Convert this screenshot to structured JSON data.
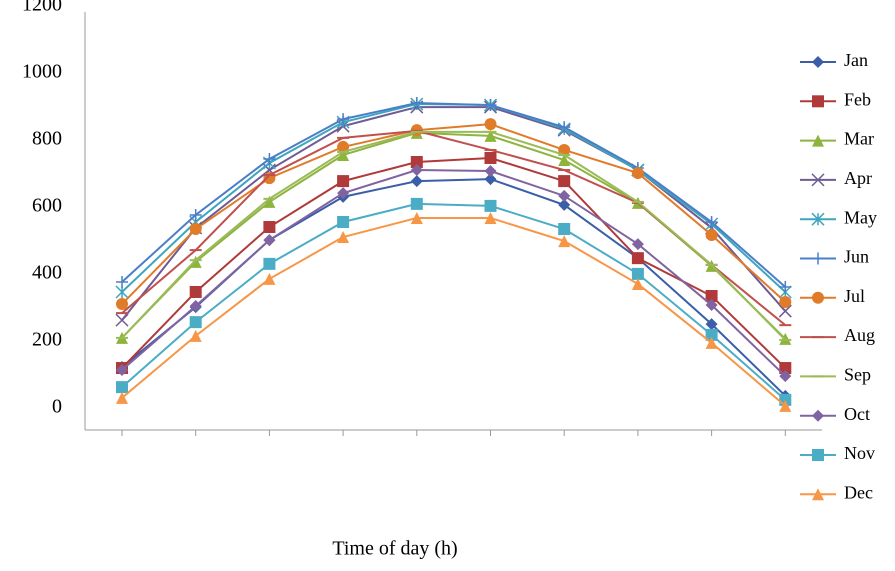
{
  "chart_data": {
    "type": "line",
    "x_label": "Time of day (h)",
    "categories": [
      null,
      null,
      null,
      null,
      null,
      null,
      null,
      null,
      null,
      null
    ],
    "ylim": [
      0,
      1200
    ],
    "yticks": [
      0,
      200,
      400,
      600,
      800,
      1000,
      1200
    ],
    "series": [
      {
        "name": "Jan",
        "color": "#3a5ea8",
        "marker": "diamond",
        "values": [
          182,
          361,
          561,
          690,
          737,
          743,
          666,
          507,
          310,
          96
        ]
      },
      {
        "name": "Feb",
        "color": "#b03a3a",
        "marker": "square",
        "values": [
          179,
          406,
          600,
          737,
          794,
          806,
          737,
          507,
          394,
          179
        ]
      },
      {
        "name": "Mar",
        "color": "#8db43c",
        "marker": "triangle",
        "values": [
          269,
          496,
          675,
          815,
          881,
          872,
          800,
          672,
          484,
          266
        ]
      },
      {
        "name": "Apr",
        "color": "#6f5a94",
        "marker": "x",
        "values": [
          322,
          597,
          770,
          901,
          958,
          958,
          889,
          770,
          597,
          349
        ]
      },
      {
        "name": "May",
        "color": "#3da6be",
        "marker": "star",
        "values": [
          406,
          615,
          791,
          913,
          967,
          964,
          893,
          770,
          609,
          406
        ]
      },
      {
        "name": "Jun",
        "color": "#4a7fc8",
        "marker": "plus",
        "values": [
          436,
          636,
          803,
          922,
          970,
          964,
          898,
          776,
          615,
          421
        ]
      },
      {
        "name": "Jul",
        "color": "#e07b2a",
        "marker": "circle",
        "values": [
          370,
          594,
          746,
          839,
          889,
          907,
          830,
          761,
          576,
          376
        ]
      },
      {
        "name": "Aug",
        "color": "#c0504d",
        "marker": "dash",
        "values": [
          343,
          531,
          755,
          866,
          887,
          830,
          770,
          672,
          487,
          307
        ]
      },
      {
        "name": "Sep",
        "color": "#9bbb59",
        "marker": "dash",
        "values": [
          269,
          501,
          684,
          824,
          884,
          884,
          815,
          675,
          487,
          263
        ]
      },
      {
        "name": "Oct",
        "color": "#8064a2",
        "marker": "diamond",
        "values": [
          173,
          364,
          561,
          701,
          770,
          767,
          693,
          549,
          367,
          155
        ]
      },
      {
        "name": "Nov",
        "color": "#4bacc6",
        "marker": "square",
        "values": [
          122,
          316,
          490,
          615,
          669,
          663,
          594,
          460,
          278,
          84
        ]
      },
      {
        "name": "Dec",
        "color": "#f79646",
        "marker": "triangle",
        "values": [
          90,
          275,
          445,
          570,
          627,
          627,
          558,
          430,
          254,
          66
        ]
      }
    ]
  }
}
